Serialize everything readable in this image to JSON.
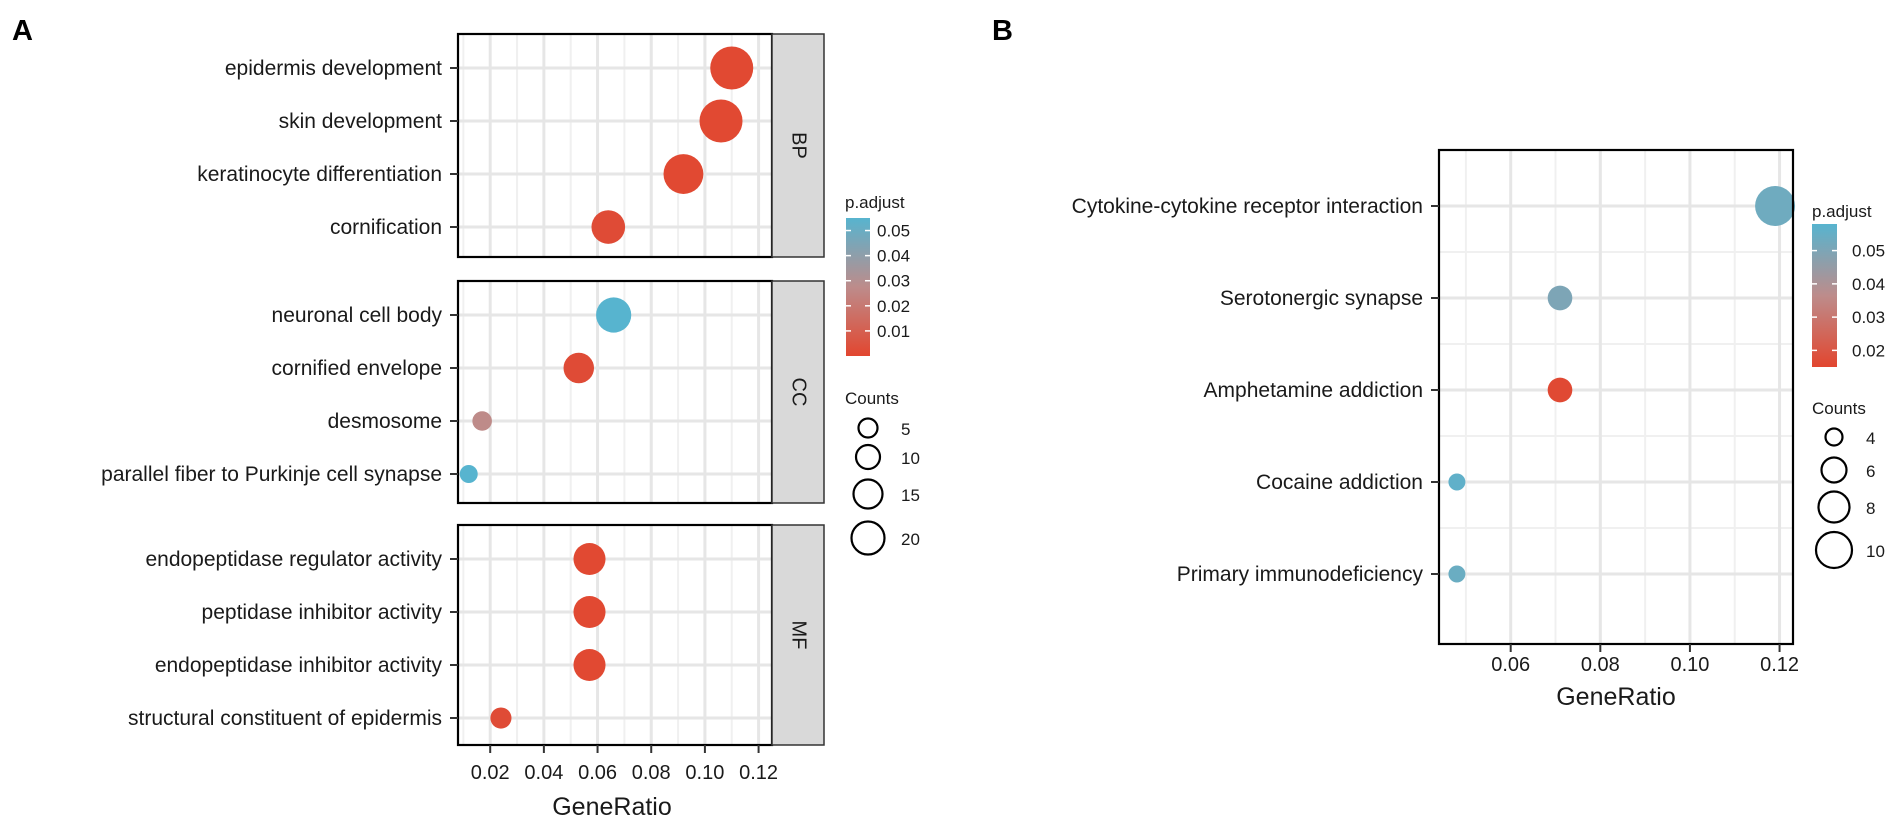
{
  "panel_a": {
    "letter": "A"
  },
  "panel_b": {
    "letter": "B"
  },
  "chart_data": [
    {
      "type": "scatter",
      "subtype": "go-enrichment-dotplot",
      "title": "",
      "xlabel": "GeneRatio",
      "ylabel": "",
      "xlim": [
        0.008,
        0.125
      ],
      "xticks": [
        "0.02",
        "0.04",
        "0.06",
        "0.08",
        "0.10",
        "0.12"
      ],
      "facets": [
        {
          "label": "BP",
          "terms": [
            {
              "term": "epidermis development",
              "gene_ratio": 0.11,
              "count": 19,
              "p_adjust": 0.001
            },
            {
              "term": "skin development",
              "gene_ratio": 0.106,
              "count": 19,
              "p_adjust": 0.001
            },
            {
              "term": "keratinocyte differentiation",
              "gene_ratio": 0.092,
              "count": 17,
              "p_adjust": 0.001
            },
            {
              "term": "cornification",
              "gene_ratio": 0.064,
              "count": 13,
              "p_adjust": 0.002
            }
          ]
        },
        {
          "label": "CC",
          "terms": [
            {
              "term": "neuronal cell body",
              "gene_ratio": 0.066,
              "count": 14,
              "p_adjust": 0.055
            },
            {
              "term": "cornified envelope",
              "gene_ratio": 0.053,
              "count": 11,
              "p_adjust": 0.002
            },
            {
              "term": "desmosome",
              "gene_ratio": 0.017,
              "count": 4,
              "p_adjust": 0.027
            },
            {
              "term": "parallel fiber to Purkinje cell synapse",
              "gene_ratio": 0.012,
              "count": 3,
              "p_adjust": 0.055
            }
          ]
        },
        {
          "label": "MF",
          "terms": [
            {
              "term": "endopeptidase regulator activity",
              "gene_ratio": 0.057,
              "count": 12,
              "p_adjust": 0.001
            },
            {
              "term": "peptidase inhibitor activity",
              "gene_ratio": 0.057,
              "count": 12,
              "p_adjust": 0.001
            },
            {
              "term": "endopeptidase inhibitor activity",
              "gene_ratio": 0.057,
              "count": 12,
              "p_adjust": 0.001
            },
            {
              "term": "structural constituent of epidermis",
              "gene_ratio": 0.024,
              "count": 5,
              "p_adjust": 0.002
            }
          ]
        }
      ],
      "color_legend": {
        "title": "p.adjust",
        "ticks": [
          "0.05",
          "0.04",
          "0.03",
          "0.02",
          "0.01"
        ],
        "range": [
          0.0,
          0.055
        ],
        "low_color": "#e2462f",
        "high_color": "#57b4cf"
      },
      "size_legend": {
        "title": "Counts",
        "values": [
          5,
          10,
          15,
          20
        ],
        "labels": [
          "5",
          "10",
          "15",
          "20"
        ]
      }
    },
    {
      "type": "scatter",
      "subtype": "kegg-enrichment-dotplot",
      "title": "",
      "xlabel": "GeneRatio",
      "ylabel": "",
      "xlim": [
        0.044,
        0.123
      ],
      "xticks": [
        "0.06",
        "0.08",
        "0.10",
        "0.12"
      ],
      "terms": [
        {
          "term": "Cytokine-cytokine receptor interaction",
          "gene_ratio": 0.119,
          "count": 10,
          "p_adjust": 0.053
        },
        {
          "term": "Serotonergic synapse",
          "gene_ratio": 0.071,
          "count": 6,
          "p_adjust": 0.05
        },
        {
          "term": "Amphetamine addiction",
          "gene_ratio": 0.071,
          "count": 6,
          "p_adjust": 0.016
        },
        {
          "term": "Cocaine addiction",
          "gene_ratio": 0.048,
          "count": 4,
          "p_adjust": 0.056
        },
        {
          "term": "Primary immunodeficiency",
          "gene_ratio": 0.048,
          "count": 4,
          "p_adjust": 0.054
        }
      ],
      "color_legend": {
        "title": "p.adjust",
        "ticks": [
          "0.05",
          "0.04",
          "0.03",
          "0.02"
        ],
        "range": [
          0.015,
          0.058
        ],
        "low_color": "#e2462f",
        "high_color": "#57b4cf"
      },
      "size_legend": {
        "title": "Counts",
        "values": [
          4,
          6,
          8,
          10
        ],
        "labels": [
          "4",
          "6",
          "8",
          "10"
        ]
      }
    }
  ]
}
